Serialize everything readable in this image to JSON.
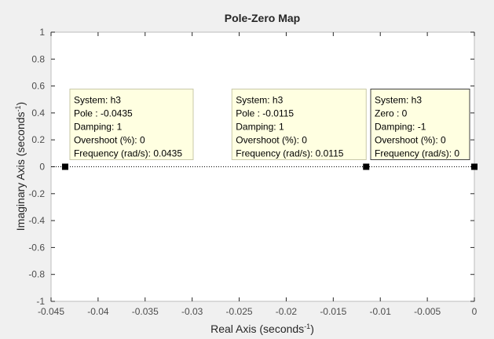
{
  "chart_data": {
    "type": "scatter",
    "title": "Pole-Zero Map",
    "xlabel": "Real Axis (seconds",
    "xlabel_sup": "-1",
    "xlabel_end": ")",
    "ylabel": "Imaginary Axis (seconds",
    "ylabel_sup": "-1",
    "ylabel_end": ")",
    "xlim": [
      -0.045,
      0
    ],
    "ylim": [
      -1,
      1
    ],
    "xticks": [
      -0.045,
      -0.04,
      -0.035,
      -0.03,
      -0.025,
      -0.02,
      -0.015,
      -0.01,
      -0.005,
      0
    ],
    "xtick_labels": [
      "-0.045",
      "-0.04",
      "-0.035",
      "-0.03",
      "-0.025",
      "-0.02",
      "-0.015",
      "-0.01",
      "-0.005",
      "0"
    ],
    "yticks": [
      1,
      0.8,
      0.6,
      0.4,
      0.2,
      0,
      -0.2,
      -0.4,
      -0.6,
      -0.8,
      -1
    ],
    "ytick_labels": [
      "1",
      "0.8",
      "0.6",
      "0.4",
      "0.2",
      "0",
      "-0.2",
      "-0.4",
      "-0.6",
      "-0.8",
      "-1"
    ],
    "grid": false,
    "zero_line": "dotted",
    "points": [
      {
        "x": -0.0435,
        "y": 0,
        "kind": "pole"
      },
      {
        "x": -0.0115,
        "y": 0,
        "kind": "pole"
      },
      {
        "x": 0,
        "y": 0,
        "kind": "zero"
      }
    ],
    "datatips": [
      {
        "lines": [
          "System: h3",
          "Pole : -0.0435",
          "Damping: 1",
          "Overshoot (%): 0",
          "Frequency (rad/s): 0.0435"
        ],
        "selected": false
      },
      {
        "lines": [
          "System: h3",
          "Pole : -0.0115",
          "Damping: 1",
          "Overshoot (%): 0",
          "Frequency (rad/s): 0.0115"
        ],
        "selected": false
      },
      {
        "lines": [
          "System: h3",
          "Zero : 0",
          "Damping: -1",
          "Overshoot (%): 0",
          "Frequency (rad/s): 0"
        ],
        "selected": true
      }
    ],
    "colors": {
      "figure_bg": "#f0f0f0",
      "axes_bg": "#ffffff",
      "axes_border": "#bcbcbc",
      "marker": "#000000",
      "tip_bg": "#ffffe1",
      "tip_border_light": "#c8c8a8",
      "tip_border_selected": "#404040"
    }
  }
}
